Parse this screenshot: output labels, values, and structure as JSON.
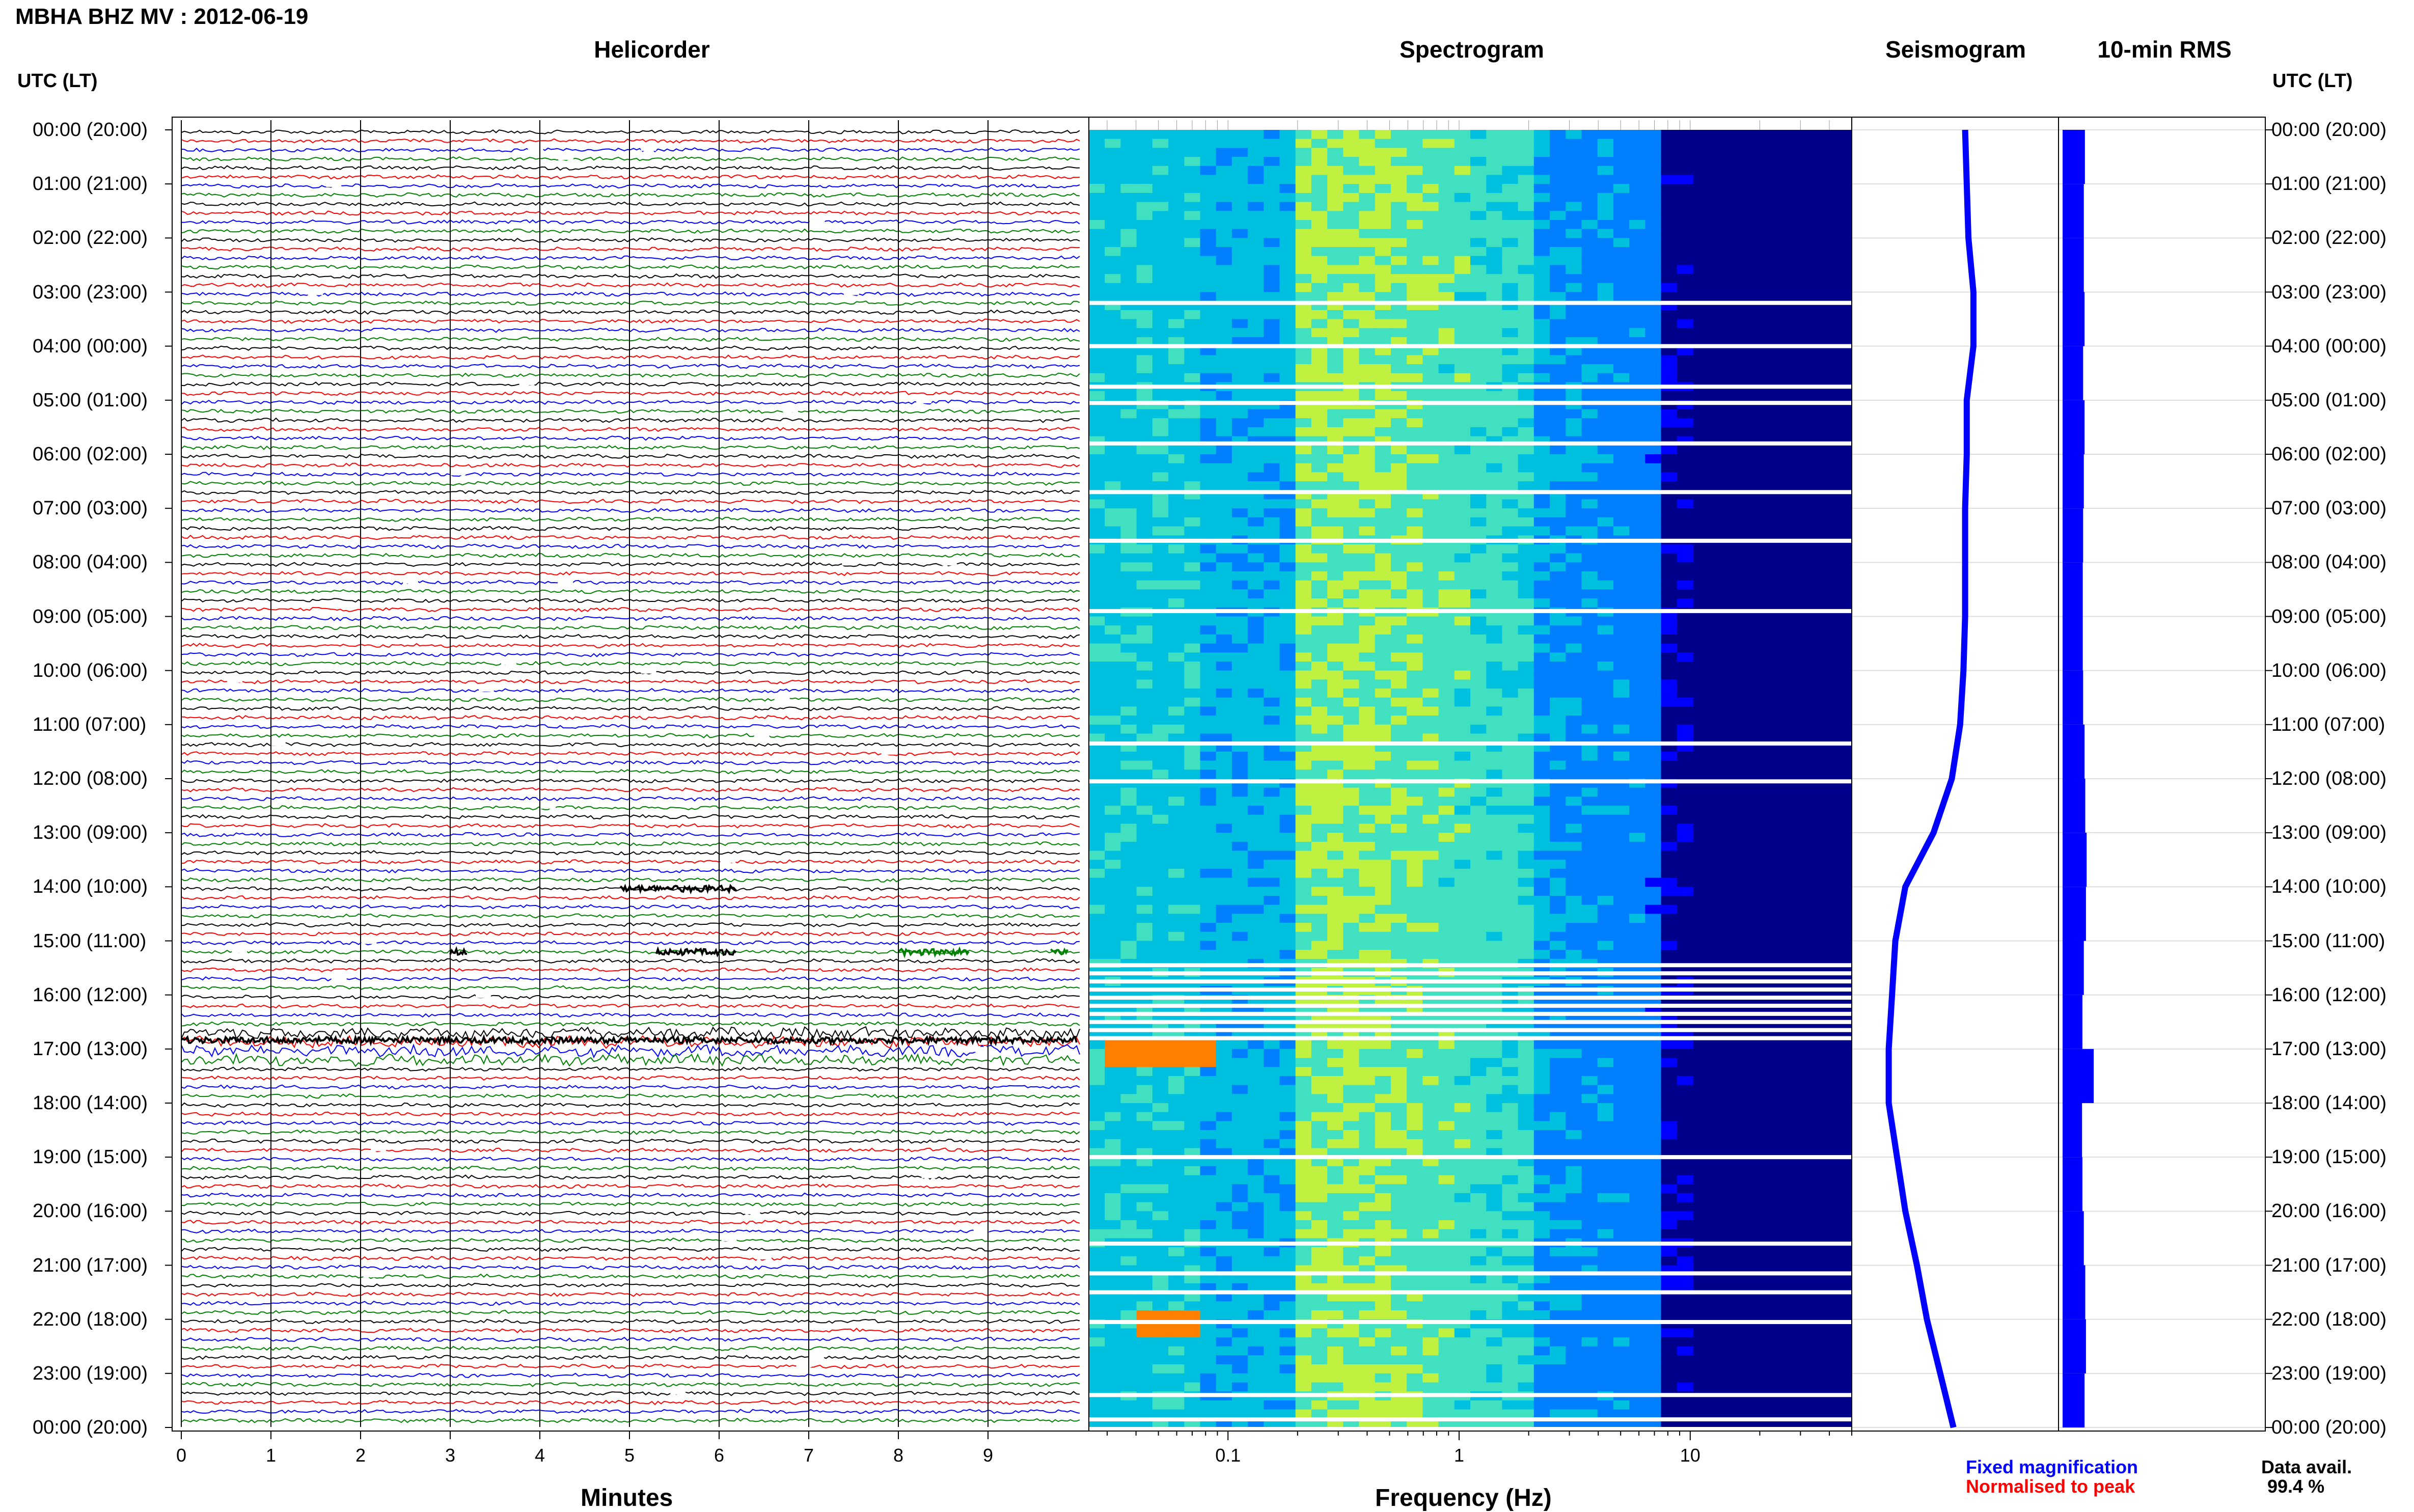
{
  "header": {
    "title": "MBHA BHZ MV : 2012-06-19",
    "utc_label_left": "UTC (LT)",
    "utc_label_right": "UTC (LT)"
  },
  "panels": {
    "helicorder": "Helicorder",
    "spectrogram": "Spectrogram",
    "seismogram": "Seismogram",
    "rms": "10-min RMS"
  },
  "hour_labels": [
    "00:00 (20:00)",
    "01:00 (21:00)",
    "02:00 (22:00)",
    "03:00 (23:00)",
    "04:00 (00:00)",
    "05:00 (01:00)",
    "06:00 (02:00)",
    "07:00 (03:00)",
    "08:00 (04:00)",
    "09:00 (05:00)",
    "10:00 (06:00)",
    "11:00 (07:00)",
    "12:00 (08:00)",
    "13:00 (09:00)",
    "14:00 (10:00)",
    "15:00 (11:00)",
    "16:00 (12:00)",
    "17:00 (13:00)",
    "18:00 (14:00)",
    "19:00 (15:00)",
    "20:00 (16:00)",
    "21:00 (17:00)",
    "22:00 (18:00)",
    "23:00 (19:00)",
    "00:00 (20:00)"
  ],
  "legend": {
    "fixed": "Fixed magnification",
    "normalised": "Normalised to peak",
    "avail_label": "Data avail.",
    "avail_value": "99.4 %",
    "fixed_color": "#0000ff",
    "normalised_color": "#ff0000"
  },
  "chart_data": [
    {
      "type": "line",
      "panel": "Helicorder",
      "xlabel": "Minutes",
      "x_ticks": [
        0,
        1,
        2,
        3,
        4,
        5,
        6,
        7,
        8,
        9
      ],
      "xlim": [
        0,
        10
      ],
      "rows_per_hour": 6,
      "rows": 144,
      "trace_colors": [
        "#000000",
        "#ff0000",
        "#0000ff",
        "#008000"
      ],
      "events": [
        {
          "hour": 14.0,
          "minute_start": 4.9,
          "minute_end": 6.2,
          "note": ""
        },
        {
          "hour": 15.17,
          "minute_start": 3.0,
          "minute_end": 3.2
        },
        {
          "hour": 15.17,
          "minute_start": 5.3,
          "minute_end": 6.2
        },
        {
          "hour": 15.17,
          "minute_start": 8.0,
          "minute_end": 8.8
        },
        {
          "hour": 15.17,
          "minute_start": 9.7,
          "minute_end": 9.9
        },
        {
          "hour": 16.8,
          "minute_start": 0.0,
          "minute_end": 10.0
        }
      ]
    },
    {
      "type": "heatmap",
      "panel": "Spectrogram",
      "xlabel": "Frequency (Hz)",
      "x_scale": "log",
      "x_ticks": [
        0.1,
        1,
        10
      ],
      "x_tick_labels": [
        "0.1",
        "1",
        "10"
      ],
      "xlim": [
        0.025,
        50
      ],
      "colormap": [
        "#00008b",
        "#0000ff",
        "#0080ff",
        "#00c0e0",
        "#40e0c0",
        "#c0f040",
        "#ffff00",
        "#ff8000"
      ],
      "gap_hours": [
        3.2,
        4.0,
        4.75,
        5.05,
        5.8,
        6.7,
        7.6,
        8.9,
        11.35,
        12.05,
        15.45,
        15.6,
        15.75,
        15.9,
        16.05,
        16.2,
        16.35,
        16.5,
        16.65,
        16.8,
        19.0,
        20.6,
        21.15,
        21.5,
        22.05,
        23.4,
        23.85
      ],
      "high_energy": [
        {
          "hour": 17.0,
          "freq_low": 0.03,
          "freq_high": 0.09
        },
        {
          "hour": 22.0,
          "freq_low": 0.04,
          "freq_high": 0.08
        }
      ]
    },
    {
      "type": "line",
      "panel": "Seismogram",
      "color": "#0000ff",
      "x": [
        0,
        1,
        2,
        3,
        4,
        5,
        6,
        7,
        8,
        9,
        10,
        11,
        12,
        13,
        14,
        15,
        16,
        17,
        18,
        19,
        20,
        21,
        22,
        23,
        24
      ],
      "y": [
        0.56,
        0.57,
        0.58,
        0.61,
        0.61,
        0.57,
        0.57,
        0.56,
        0.56,
        0.56,
        0.55,
        0.53,
        0.48,
        0.37,
        0.2,
        0.14,
        0.12,
        0.1,
        0.1,
        0.15,
        0.2,
        0.27,
        0.33,
        0.41,
        0.49
      ]
    },
    {
      "type": "bar",
      "panel": "10-min RMS",
      "orientation": "horizontal",
      "color": "#0000ff",
      "hours": [
        0,
        1,
        2,
        3,
        4,
        5,
        6,
        7,
        8,
        9,
        10,
        11,
        12,
        13,
        14,
        15,
        16,
        17,
        18,
        19,
        20,
        21,
        22,
        23
      ],
      "values": [
        0.63,
        0.6,
        0.6,
        0.62,
        0.58,
        0.62,
        0.6,
        0.58,
        0.57,
        0.57,
        0.58,
        0.62,
        0.64,
        0.68,
        0.66,
        0.6,
        0.56,
        0.88,
        0.55,
        0.56,
        0.6,
        0.64,
        0.66,
        0.62
      ]
    }
  ]
}
